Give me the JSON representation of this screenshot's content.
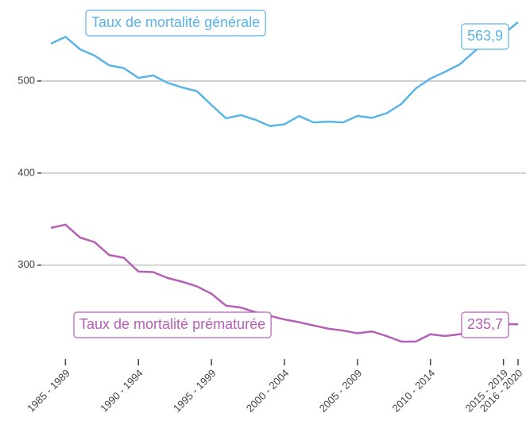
{
  "chart_data": {
    "type": "line",
    "categories": [
      null,
      "1985 - 1989",
      null,
      null,
      null,
      null,
      "1990 - 1994",
      null,
      null,
      null,
      null,
      "1995 - 1999",
      null,
      null,
      null,
      null,
      "2000 - 2004",
      null,
      null,
      null,
      null,
      "2005 - 2009",
      null,
      null,
      null,
      null,
      "2010 - 2014",
      null,
      null,
      null,
      null,
      "2015 - 2019",
      "2016 - 2020"
    ],
    "series": [
      {
        "name": "Taux de mortalité générale",
        "color": "#5ab4e5",
        "values": [
          540.5,
          548,
          534.5,
          527.6,
          517,
          514,
          503.4,
          506,
          498,
          493,
          489,
          474,
          459.5,
          463,
          458,
          451,
          453,
          462,
          455,
          456,
          455,
          462,
          460,
          465,
          475,
          492,
          502.6,
          510,
          518,
          532,
          545,
          551,
          563.9
        ],
        "value_labels": [
          null,
          null,
          null,
          null,
          null,
          null,
          null,
          null,
          null,
          null,
          null,
          null,
          null,
          null,
          null,
          null,
          null,
          null,
          null,
          null,
          null,
          null,
          null,
          null,
          null,
          null,
          null,
          null,
          null,
          null,
          null,
          null,
          "563,9"
        ]
      },
      {
        "name": "Taux de mortalité prématurée",
        "color": "#b55fb5",
        "values": [
          340.5,
          344,
          330,
          325,
          311,
          308,
          293,
          292.5,
          286,
          282,
          277,
          269,
          256,
          254,
          249,
          245,
          241,
          238,
          234.5,
          231,
          229,
          226,
          228,
          223,
          217,
          217,
          225,
          223,
          225,
          228,
          231,
          236,
          235.7
        ],
        "value_labels": [
          null,
          null,
          null,
          null,
          null,
          null,
          null,
          null,
          null,
          null,
          null,
          null,
          null,
          null,
          null,
          null,
          null,
          null,
          null,
          null,
          null,
          null,
          null,
          null,
          null,
          null,
          null,
          null,
          null,
          null,
          null,
          null,
          "235,7"
        ]
      }
    ],
    "ylim": [
      198,
      588
    ],
    "yticks": [
      300,
      400,
      500
    ],
    "grid": true
  }
}
